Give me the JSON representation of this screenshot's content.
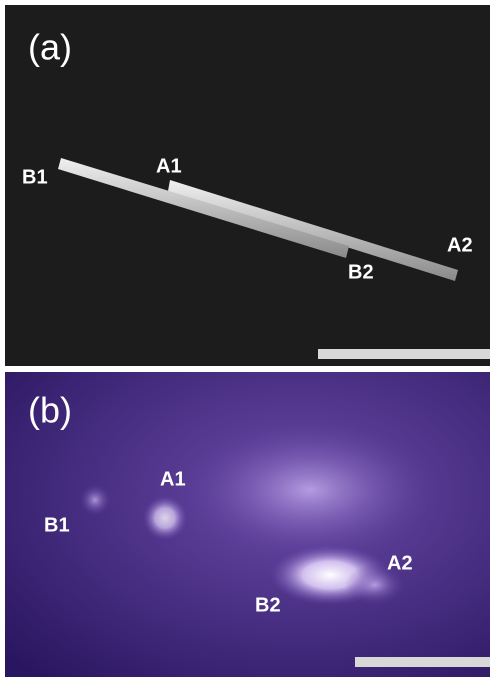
{
  "panels": [
    {
      "label": "(a)",
      "markers": [
        "B1",
        "A1",
        "B2",
        "A2"
      ]
    },
    {
      "label": "(b)",
      "markers": [
        "B1",
        "A1",
        "B2",
        "A2"
      ]
    }
  ]
}
